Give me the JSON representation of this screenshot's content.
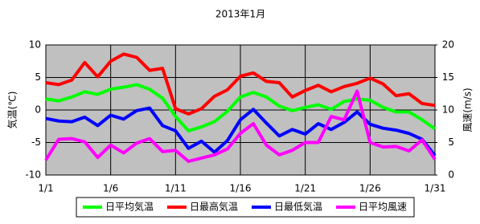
{
  "chart_data": {
    "type": "line",
    "title": "2013年1月",
    "y_label": "気温(℃)",
    "y2_label": "風速(m/s)",
    "x": [
      1,
      2,
      3,
      4,
      5,
      6,
      7,
      8,
      9,
      10,
      11,
      12,
      13,
      14,
      15,
      16,
      17,
      18,
      19,
      20,
      21,
      22,
      23,
      24,
      25,
      26,
      27,
      28,
      29,
      30,
      31
    ],
    "xlim": [
      1,
      31
    ],
    "xticks": [
      {
        "value": 1,
        "label": "1/1"
      },
      {
        "value": 6,
        "label": "1/6"
      },
      {
        "value": 11,
        "label": "1/11"
      },
      {
        "value": 16,
        "label": "1/16"
      },
      {
        "value": 21,
        "label": "1/21"
      },
      {
        "value": 26,
        "label": "1/26"
      },
      {
        "value": 31,
        "label": "1/31"
      }
    ],
    "ylim": [
      -10,
      10
    ],
    "yticks": [
      -10,
      -5,
      0,
      5,
      10
    ],
    "y2lim": [
      0,
      20
    ],
    "y2ticks": [
      0,
      5,
      10,
      15,
      20
    ],
    "grid": true,
    "legend": "bottom",
    "series": [
      {
        "name": "日平均気温",
        "color": "#00ff00",
        "values": [
          1.7,
          1.4,
          2.0,
          2.8,
          2.4,
          3.2,
          3.5,
          3.9,
          3.2,
          1.8,
          -1.0,
          -3.2,
          -2.6,
          -1.8,
          -0.2,
          2.0,
          2.7,
          2.0,
          0.6,
          -0.1,
          0.4,
          0.8,
          0.1,
          1.3,
          1.7,
          1.5,
          0.4,
          -0.3,
          -0.3,
          -1.5,
          -2.9
        ]
      },
      {
        "name": "日最高気温",
        "color": "#ff0000",
        "values": [
          4.2,
          3.9,
          4.6,
          7.3,
          5.1,
          7.5,
          8.6,
          8.1,
          6.1,
          6.4,
          0.2,
          -0.6,
          0.2,
          2.1,
          3.1,
          5.2,
          5.7,
          4.4,
          4.2,
          2.0,
          3.0,
          3.8,
          2.8,
          3.6,
          4.1,
          4.9,
          4.0,
          2.2,
          2.5,
          1.0,
          0.7
        ]
      },
      {
        "name": "日最低気温",
        "color": "#0000ff",
        "values": [
          -1.3,
          -1.7,
          -1.8,
          -1.1,
          -2.4,
          -0.8,
          -1.4,
          -0.1,
          0.3,
          -2.4,
          -3.2,
          -5.9,
          -4.8,
          -6.5,
          -4.7,
          -1.5,
          0.1,
          -2.0,
          -4.0,
          -3.0,
          -3.7,
          -2.1,
          -3.0,
          -1.9,
          -0.3,
          -2.2,
          -2.8,
          -3.1,
          -3.6,
          -4.5,
          -7.0
        ]
      },
      {
        "name": "日平均風速",
        "color": "#ff00ff",
        "axis": "y2",
        "values": [
          2.3,
          5.5,
          5.6,
          5.1,
          2.7,
          4.6,
          3.4,
          4.9,
          5.6,
          3.6,
          3.8,
          2.1,
          2.6,
          3.1,
          4.0,
          6.4,
          7.9,
          4.6,
          3.1,
          3.8,
          5.0,
          5.0,
          9.0,
          8.5,
          12.9,
          5.0,
          4.3,
          4.4,
          3.7,
          5.4,
          2.4
        ]
      }
    ]
  }
}
